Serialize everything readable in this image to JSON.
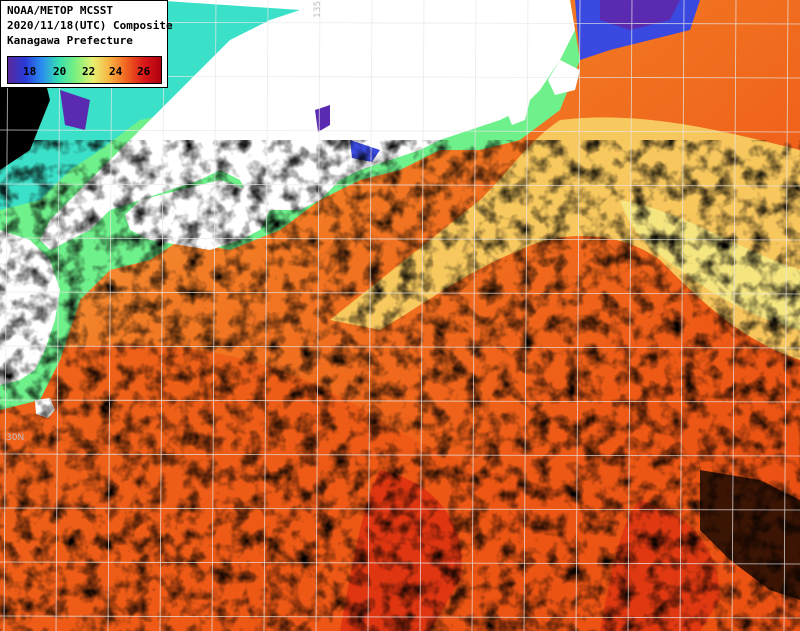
{
  "title": {
    "line1": "NOAA/METOP MCSST",
    "line2": "2020/11/18(UTC) Composite",
    "line3": "Kanagawa Prefecture"
  },
  "legend": {
    "ticks": [
      "18",
      "20",
      "22",
      "24",
      "26"
    ],
    "colors": [
      "#5a2a9a",
      "#2a3ad8",
      "#2a8ef0",
      "#36e0b0",
      "#7ef07e",
      "#e8f070",
      "#f8b040",
      "#f06020",
      "#d81818",
      "#b00010"
    ]
  },
  "grid_labels": {
    "lon": "135E",
    "lat": "30N"
  },
  "colors": {
    "land": "#ffffff",
    "cloud": "#000000",
    "warm": "#f06a1e",
    "mid": "#f8a840",
    "cool": "#f0e070",
    "coast": "#5ee8a0",
    "cold": "#3a4ae0",
    "grid": "#e8e8e8"
  }
}
